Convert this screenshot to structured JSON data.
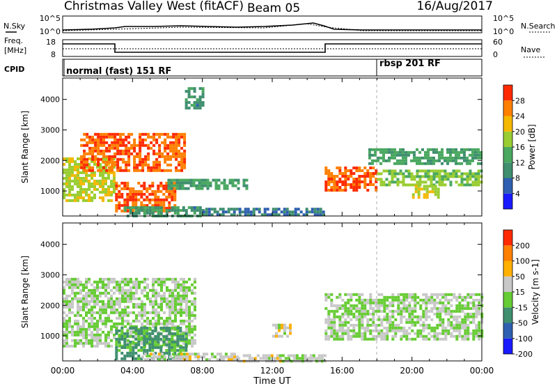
{
  "header": {
    "station_title": "Christmas Valley West (fitACF)",
    "beam": "Beam 05",
    "date": "16/Aug/2017"
  },
  "noise_panel": {
    "left_label": "N.Sky",
    "right_label": "N.Search",
    "left_ticks": [
      "10^5",
      "10^0"
    ],
    "right_ticks": [
      "10^5",
      "10^0"
    ]
  },
  "freq_panel": {
    "left_label_line1": "Freq.",
    "left_label_line2": "[MHz]",
    "right_label": "Nave",
    "left_ticks": [
      "18",
      "8"
    ],
    "right_ticks": [
      "60",
      "0"
    ]
  },
  "cpid_panel": {
    "label": "CPID",
    "programs": [
      {
        "name": "normal (fast) 151 RF",
        "start_hour": 0
      },
      {
        "name": "rbsp 201 RF",
        "start_hour": 18
      }
    ]
  },
  "x_axis": {
    "label": "Time UT",
    "ticks": [
      "00:00",
      "04:00",
      "08:00",
      "12:00",
      "16:00",
      "20:00",
      "00:00"
    ]
  },
  "chart_data": [
    {
      "type": "heatmap",
      "title": "",
      "xlabel": "Time UT",
      "ylabel": "Slant Range [km]",
      "xlim_hours": [
        0,
        24
      ],
      "ylim_km": [
        180,
        4700
      ],
      "yticks": [
        "1000",
        "2000",
        "3000",
        "4000"
      ],
      "colorbar": {
        "label": "Power [dB]",
        "ticks": [
          "4",
          "8",
          "12",
          "16",
          "20",
          "24",
          "28"
        ],
        "range": [
          0,
          30
        ],
        "colors": [
          "#1a1aff",
          "#2f5fb0",
          "#3f8f6f",
          "#4aa860",
          "#9acd32",
          "#f5b800",
          "#ff7f00",
          "#ff2a00"
        ]
      },
      "regions": [
        {
          "t0": 0.0,
          "t1": 3.0,
          "r0": 700,
          "r1": 2100,
          "level": 18
        },
        {
          "t0": 1.0,
          "t1": 7.0,
          "r0": 1700,
          "r1": 2900,
          "level": 26
        },
        {
          "t0": 3.0,
          "t1": 6.5,
          "r0": 350,
          "r1": 1300,
          "level": 26
        },
        {
          "t0": 3.5,
          "t1": 8.0,
          "r0": 200,
          "r1": 500,
          "level": 10
        },
        {
          "t0": 6.0,
          "t1": 10.5,
          "r0": 1100,
          "r1": 1400,
          "level": 12
        },
        {
          "t0": 8.0,
          "t1": 15.0,
          "r0": 200,
          "r1": 450,
          "level": 8
        },
        {
          "t0": 15.0,
          "t1": 18.0,
          "r0": 1000,
          "r1": 1800,
          "level": 26
        },
        {
          "t0": 18.0,
          "t1": 24.0,
          "r0": 1200,
          "r1": 1700,
          "level": 16
        },
        {
          "t0": 17.5,
          "t1": 24.0,
          "r0": 1900,
          "r1": 2400,
          "level": 12
        },
        {
          "t0": 20.0,
          "t1": 21.5,
          "r0": 800,
          "r1": 1200,
          "level": 18
        },
        {
          "t0": 7.0,
          "t1": 8.0,
          "r0": 3700,
          "r1": 4400,
          "level": 10
        }
      ]
    },
    {
      "type": "heatmap",
      "title": "",
      "xlabel": "Time UT",
      "ylabel": "Slant Range [km]",
      "xlim_hours": [
        0,
        24
      ],
      "ylim_km": [
        180,
        4700
      ],
      "yticks": [
        "1000",
        "2000",
        "3000",
        "4000"
      ],
      "colorbar": {
        "label": "Velocity [m s-1]",
        "ticks": [
          "200",
          "100",
          "50",
          "15",
          "-15",
          "-50",
          "-100",
          "-200"
        ],
        "range": [
          -250,
          250
        ],
        "colors": [
          "#1a1aff",
          "#2f5fb0",
          "#3f8f6f",
          "#66cc33",
          "#c8c8c8",
          "#ffb000",
          "#ff7f00",
          "#ff2a00"
        ]
      },
      "regions": [
        {
          "t0": 0.0,
          "t1": 7.5,
          "r0": 700,
          "r1": 2900,
          "level": 0
        },
        {
          "t0": 3.0,
          "t1": 7.0,
          "r0": 250,
          "r1": 1300,
          "level": -80
        },
        {
          "t0": 4.5,
          "t1": 10.0,
          "r0": 200,
          "r1": 450,
          "level": 30
        },
        {
          "t0": 10.0,
          "t1": 15.0,
          "r0": 200,
          "r1": 400,
          "level": 25
        },
        {
          "t0": 15.0,
          "t1": 24.0,
          "r0": 900,
          "r1": 2400,
          "level": 0
        },
        {
          "t0": 12.0,
          "t1": 13.0,
          "r0": 1000,
          "r1": 1400,
          "level": 30
        }
      ]
    }
  ]
}
